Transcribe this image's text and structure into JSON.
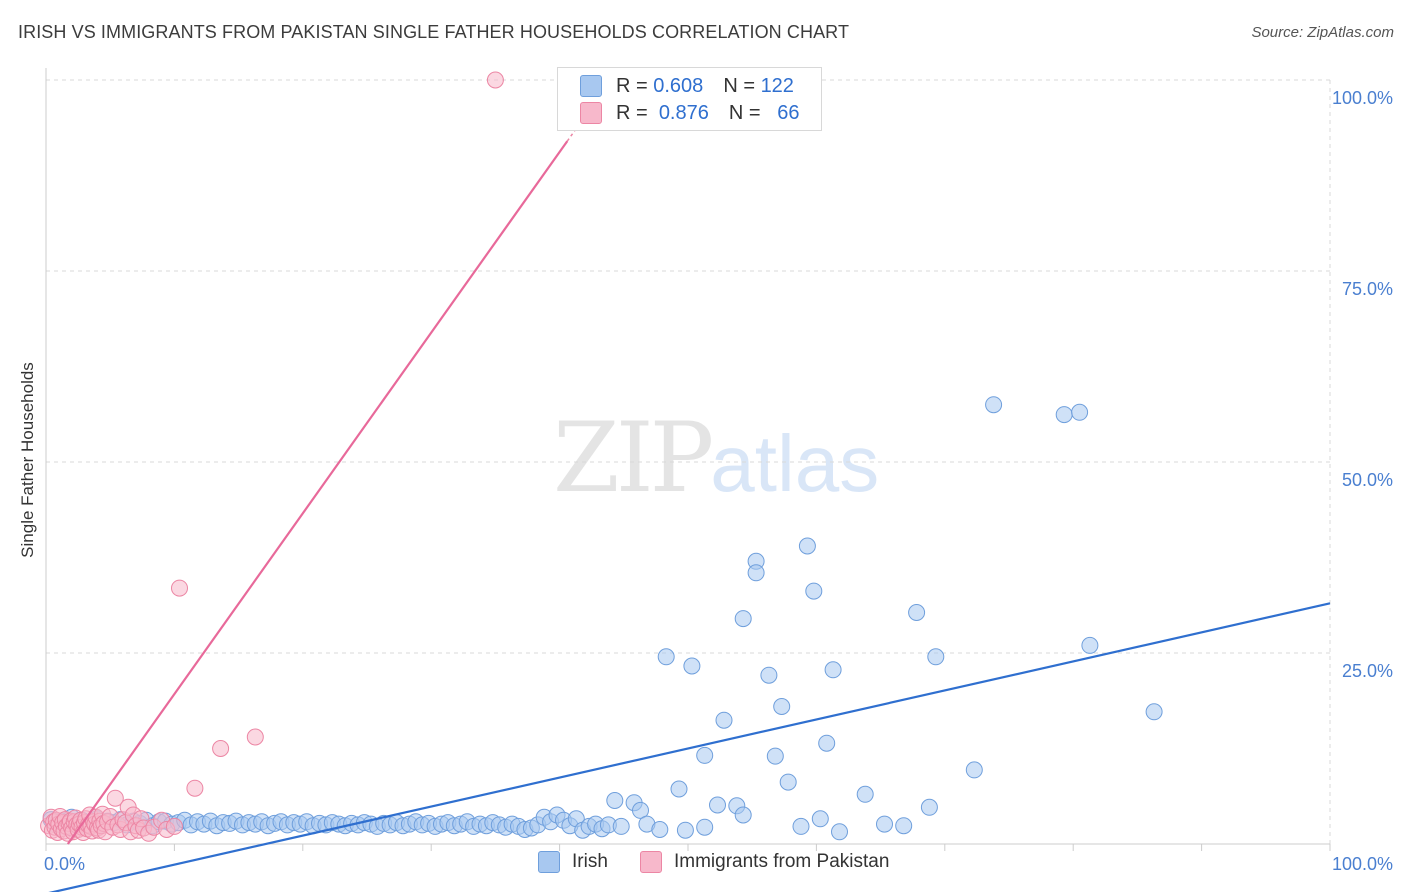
{
  "header": {
    "title": "IRISH VS IMMIGRANTS FROM PAKISTAN SINGLE FATHER HOUSEHOLDS CORRELATION CHART",
    "source": "Source: ZipAtlas.com"
  },
  "watermark": {
    "zip": "ZIP",
    "atlas": "atlas"
  },
  "legend": {
    "rows": [
      {
        "r_label": "R =",
        "r_value": "0.608",
        "n_label": "N =",
        "n_value": "122",
        "color": "#a8c8f0"
      },
      {
        "r_label": "R =",
        "r_value": "0.876",
        "n_label": "N =",
        "n_value": "66",
        "color": "#f7b8cb"
      }
    ]
  },
  "colors": {
    "irish_fill": "#a8c8f0",
    "irish_stroke": "#6f9fdc",
    "irish_line": "#2f6fcf",
    "pakistan_fill": "#f7b8cb",
    "pakistan_stroke": "#ec86a4",
    "pakistan_line": "#e8699a",
    "axis_label": "#4a7fd0",
    "grid": "#d9d9d9"
  },
  "chart_data": {
    "type": "scatter",
    "title": "IRISH VS IMMIGRANTS FROM PAKISTAN SINGLE FATHER HOUSEHOLDS CORRELATION CHART",
    "xlabel": "",
    "ylabel": "Single Father Households",
    "xlim": [
      0,
      100
    ],
    "ylim": [
      0,
      100
    ],
    "x_tick_labels": [
      "0.0%",
      "100.0%"
    ],
    "y_ticks": [
      {
        "value": 25,
        "label": "25.0%"
      },
      {
        "value": 50,
        "label": "50.0%"
      },
      {
        "value": 75,
        "label": "75.0%"
      },
      {
        "value": 100,
        "label": "100.0%"
      }
    ],
    "grid": true,
    "legend_position": "top-center",
    "series": [
      {
        "name": "Irish",
        "r": 0.608,
        "n": 122,
        "trend": [
          [
            0,
            -6.5
          ],
          [
            100,
            31.5
          ]
        ],
        "points": [
          [
            0.4,
            3.2
          ],
          [
            0.8,
            2.5
          ],
          [
            1.2,
            3.0
          ],
          [
            1.6,
            2.2
          ],
          [
            2.0,
            3.5
          ],
          [
            2.4,
            2.7
          ],
          [
            2.8,
            3.1
          ],
          [
            3.2,
            2.4
          ],
          [
            3.6,
            2.9
          ],
          [
            4.0,
            3.3
          ],
          [
            4.4,
            2.6
          ],
          [
            4.8,
            3.0
          ],
          [
            5.3,
            2.8
          ],
          [
            5.8,
            3.2
          ],
          [
            6.3,
            2.5
          ],
          [
            6.8,
            3.0
          ],
          [
            7.3,
            2.7
          ],
          [
            7.8,
            3.1
          ],
          [
            8.3,
            2.4
          ],
          [
            8.8,
            2.9
          ],
          [
            9.3,
            3.0
          ],
          [
            9.8,
            2.6
          ],
          [
            10.3,
            2.8
          ],
          [
            10.8,
            3.1
          ],
          [
            11.3,
            2.5
          ],
          [
            11.8,
            2.9
          ],
          [
            12.3,
            2.6
          ],
          [
            12.8,
            3.0
          ],
          [
            13.3,
            2.4
          ],
          [
            13.8,
            2.8
          ],
          [
            14.3,
            2.7
          ],
          [
            14.8,
            3.0
          ],
          [
            15.3,
            2.5
          ],
          [
            15.8,
            2.8
          ],
          [
            16.3,
            2.6
          ],
          [
            16.8,
            2.9
          ],
          [
            17.3,
            2.4
          ],
          [
            17.8,
            2.7
          ],
          [
            18.3,
            2.9
          ],
          [
            18.8,
            2.5
          ],
          [
            19.3,
            2.8
          ],
          [
            19.8,
            2.6
          ],
          [
            20.3,
            2.9
          ],
          [
            20.8,
            2.4
          ],
          [
            21.3,
            2.7
          ],
          [
            21.8,
            2.5
          ],
          [
            22.3,
            2.8
          ],
          [
            22.8,
            2.6
          ],
          [
            23.3,
            2.4
          ],
          [
            23.8,
            2.7
          ],
          [
            24.3,
            2.5
          ],
          [
            24.8,
            2.8
          ],
          [
            25.3,
            2.6
          ],
          [
            25.8,
            2.3
          ],
          [
            26.3,
            2.7
          ],
          [
            26.8,
            2.5
          ],
          [
            27.3,
            2.8
          ],
          [
            27.8,
            2.4
          ],
          [
            28.3,
            2.6
          ],
          [
            28.8,
            2.9
          ],
          [
            29.3,
            2.5
          ],
          [
            29.8,
            2.7
          ],
          [
            30.3,
            2.3
          ],
          [
            30.8,
            2.6
          ],
          [
            31.3,
            2.8
          ],
          [
            31.8,
            2.4
          ],
          [
            32.3,
            2.6
          ],
          [
            32.8,
            2.9
          ],
          [
            33.3,
            2.3
          ],
          [
            33.8,
            2.6
          ],
          [
            34.3,
            2.4
          ],
          [
            34.8,
            2.8
          ],
          [
            35.3,
            2.5
          ],
          [
            35.8,
            2.2
          ],
          [
            36.3,
            2.6
          ],
          [
            36.8,
            2.3
          ],
          [
            37.3,
            1.9
          ],
          [
            37.8,
            2.1
          ],
          [
            38.3,
            2.5
          ],
          [
            38.8,
            3.5
          ],
          [
            39.3,
            2.9
          ],
          [
            39.8,
            3.8
          ],
          [
            40.3,
            3.1
          ],
          [
            40.8,
            2.4
          ],
          [
            41.3,
            3.3
          ],
          [
            41.8,
            1.8
          ],
          [
            42.3,
            2.3
          ],
          [
            42.8,
            2.6
          ],
          [
            43.3,
            2.0
          ],
          [
            43.8,
            2.5
          ],
          [
            44.3,
            5.7
          ],
          [
            44.8,
            2.3
          ],
          [
            45.8,
            5.4
          ],
          [
            46.3,
            4.4
          ],
          [
            46.8,
            2.6
          ],
          [
            47.8,
            1.9
          ],
          [
            48.3,
            24.5
          ],
          [
            50.3,
            23.3
          ],
          [
            49.3,
            7.2
          ],
          [
            51.3,
            2.2
          ],
          [
            49.8,
            1.8
          ],
          [
            51.3,
            11.6
          ],
          [
            52.3,
            5.1
          ],
          [
            52.8,
            16.2
          ],
          [
            53.8,
            5.0
          ],
          [
            54.3,
            29.5
          ],
          [
            54.3,
            3.8
          ],
          [
            55.3,
            37.0
          ],
          [
            55.3,
            35.5
          ],
          [
            56.3,
            22.1
          ],
          [
            56.8,
            11.5
          ],
          [
            57.3,
            18.0
          ],
          [
            57.8,
            8.1
          ],
          [
            58.8,
            2.3
          ],
          [
            59.3,
            39.0
          ],
          [
            59.8,
            33.1
          ],
          [
            60.3,
            3.3
          ],
          [
            60.8,
            13.2
          ],
          [
            61.3,
            22.8
          ],
          [
            61.8,
            1.6
          ],
          [
            63.8,
            6.5
          ],
          [
            67.8,
            30.3
          ],
          [
            68.8,
            4.8
          ],
          [
            69.3,
            24.5
          ],
          [
            72.3,
            9.7
          ],
          [
            73.8,
            57.5
          ],
          [
            79.3,
            56.2
          ],
          [
            80.5,
            56.5
          ],
          [
            81.3,
            26.0
          ],
          [
            86.3,
            17.3
          ],
          [
            65.3,
            2.6
          ],
          [
            66.8,
            2.4
          ]
        ]
      },
      {
        "name": "Immigrants from Pakistan",
        "r": 0.876,
        "n": 66,
        "trend": [
          [
            1.7,
            0
          ],
          [
            40.6,
            92.0
          ]
        ],
        "points": [
          [
            0.2,
            2.4
          ],
          [
            0.4,
            3.5
          ],
          [
            0.5,
            1.8
          ],
          [
            0.6,
            2.9
          ],
          [
            0.7,
            2.2
          ],
          [
            0.8,
            3.1
          ],
          [
            0.9,
            1.5
          ],
          [
            1.0,
            2.6
          ],
          [
            1.1,
            3.6
          ],
          [
            1.2,
            2.0
          ],
          [
            1.3,
            2.8
          ],
          [
            1.4,
            1.7
          ],
          [
            1.5,
            3.2
          ],
          [
            1.6,
            2.3
          ],
          [
            1.7,
            1.4
          ],
          [
            1.8,
            2.7
          ],
          [
            1.9,
            3.0
          ],
          [
            2.0,
            2.1
          ],
          [
            2.1,
            1.6
          ],
          [
            2.2,
            2.9
          ],
          [
            2.3,
            3.4
          ],
          [
            2.4,
            2.5
          ],
          [
            2.5,
            1.9
          ],
          [
            2.6,
            2.6
          ],
          [
            2.7,
            3.1
          ],
          [
            2.8,
            2.2
          ],
          [
            2.9,
            1.5
          ],
          [
            3.0,
            2.8
          ],
          [
            3.1,
            3.3
          ],
          [
            3.2,
            2.0
          ],
          [
            3.3,
            2.5
          ],
          [
            3.4,
            3.8
          ],
          [
            3.5,
            2.3
          ],
          [
            3.6,
            1.7
          ],
          [
            3.7,
            2.9
          ],
          [
            3.8,
            2.6
          ],
          [
            3.9,
            3.5
          ],
          [
            4.0,
            2.1
          ],
          [
            4.1,
            1.8
          ],
          [
            4.2,
            3.0
          ],
          [
            4.3,
            2.4
          ],
          [
            4.4,
            3.9
          ],
          [
            4.5,
            2.7
          ],
          [
            4.6,
            1.6
          ],
          [
            4.8,
            2.9
          ],
          [
            5.0,
            3.6
          ],
          [
            5.2,
            2.2
          ],
          [
            5.4,
            6.0
          ],
          [
            5.6,
            2.5
          ],
          [
            5.8,
            1.9
          ],
          [
            6.0,
            3.2
          ],
          [
            6.2,
            2.8
          ],
          [
            6.4,
            4.8
          ],
          [
            6.6,
            1.6
          ],
          [
            6.8,
            3.8
          ],
          [
            7.0,
            2.4
          ],
          [
            7.2,
            1.8
          ],
          [
            7.4,
            3.3
          ],
          [
            7.6,
            2.1
          ],
          [
            8.0,
            1.4
          ],
          [
            8.4,
            2.2
          ],
          [
            9.0,
            3.1
          ],
          [
            9.4,
            1.9
          ],
          [
            10.0,
            2.3
          ],
          [
            10.4,
            33.5
          ],
          [
            11.6,
            7.3
          ],
          [
            13.6,
            12.5
          ],
          [
            16.3,
            14.0
          ],
          [
            35.0,
            100.0
          ]
        ]
      }
    ]
  },
  "bottom_legend": {
    "items": [
      {
        "label": "Irish"
      },
      {
        "label": "Immigrants from Pakistan"
      }
    ]
  }
}
